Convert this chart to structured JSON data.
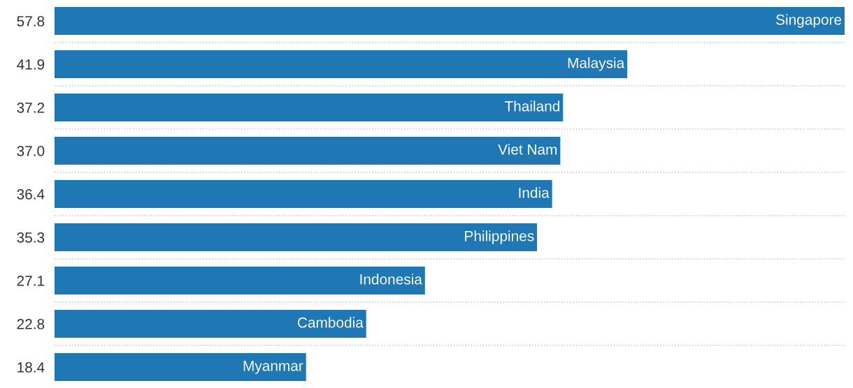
{
  "chart_data": {
    "type": "bar",
    "orientation": "horizontal",
    "color": "#1f77b4",
    "categories": [
      "Singapore",
      "Malaysia",
      "Thailand",
      "Viet Nam",
      "India",
      "Philippines",
      "Indonesia",
      "Cambodia",
      "Myanmar"
    ],
    "values": [
      57.8,
      41.9,
      37.2,
      37.0,
      36.4,
      35.3,
      27.1,
      22.8,
      18.4
    ],
    "value_labels": [
      "57.8",
      "41.9",
      "37.2",
      "37.0",
      "36.4",
      "35.3",
      "27.1",
      "22.8",
      "18.4"
    ],
    "grid": "y",
    "legend": false
  }
}
